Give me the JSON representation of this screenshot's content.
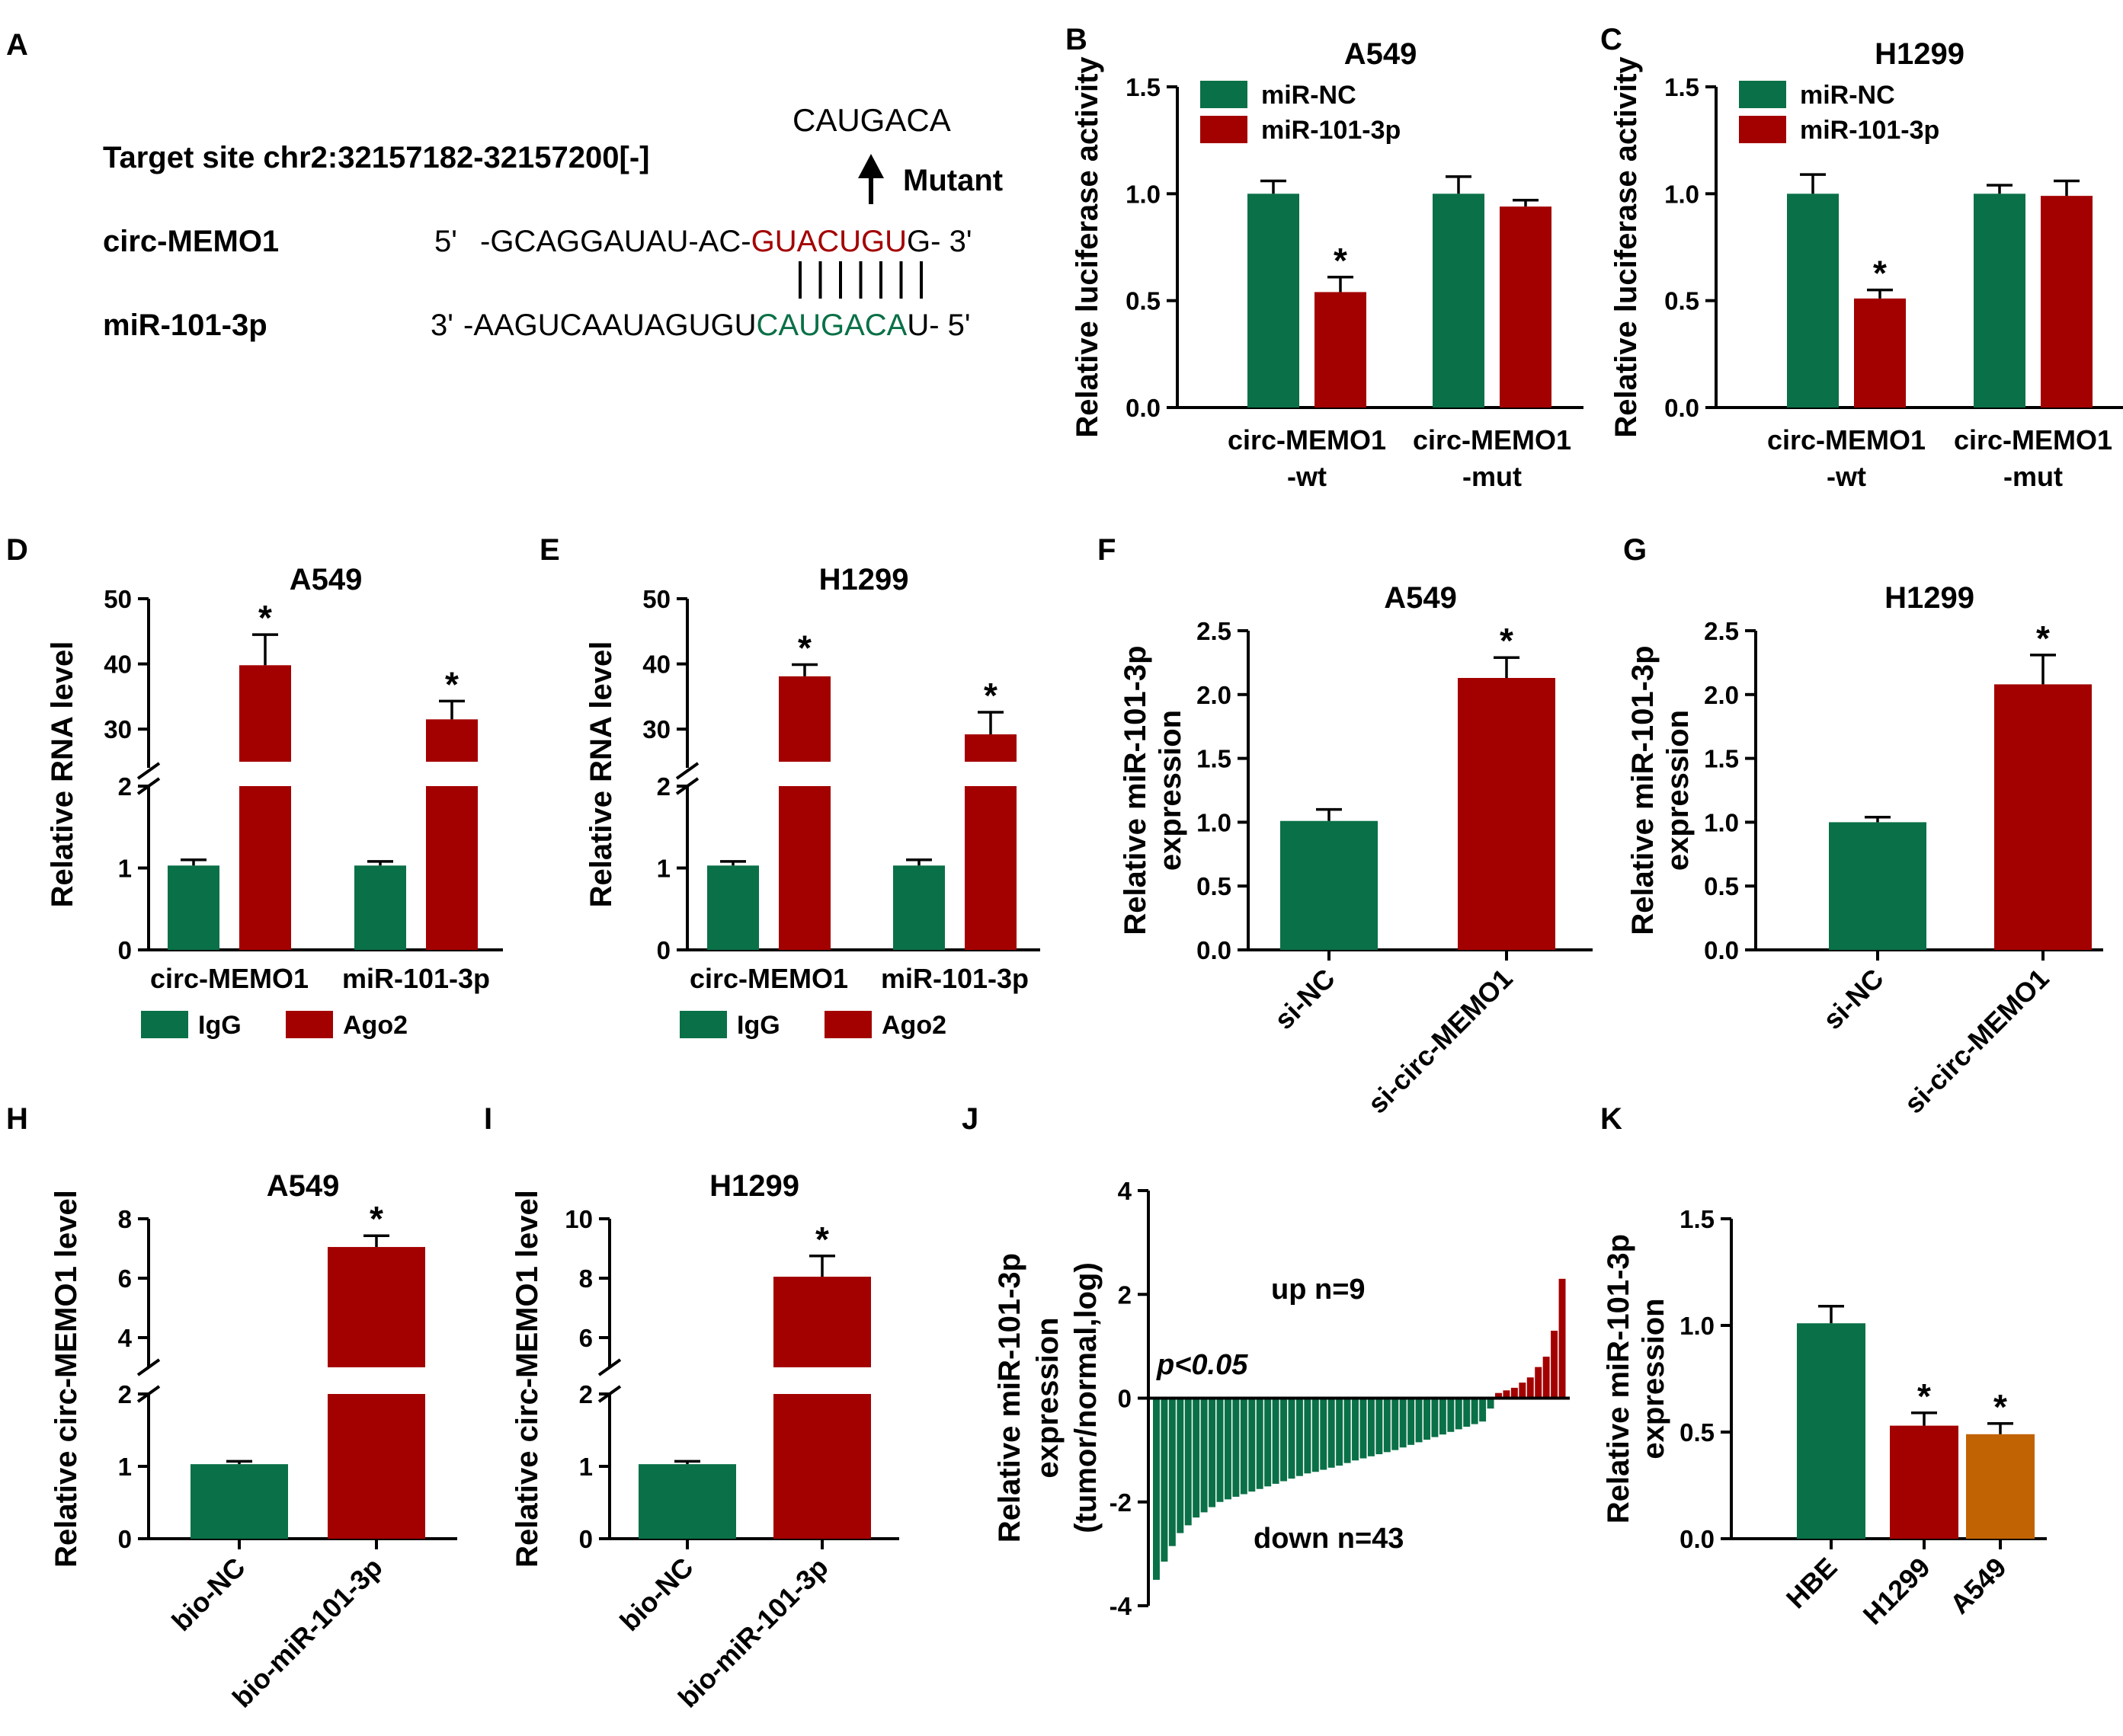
{
  "colors": {
    "green": "#0A7047",
    "red": "#A30000",
    "orange": "#C26303"
  },
  "panel_labels": [
    "A",
    "B",
    "C",
    "D",
    "E",
    "F",
    "G",
    "H",
    "I",
    "J",
    "K"
  ],
  "panelA": {
    "target_site": "Target site chr2:32157182-32157200[-]",
    "mutant_seq": "CAUGACA",
    "mutant_label": "Mutant",
    "row1_name": "circ-MEMO1",
    "row1_five": "5'",
    "row1_pre": "-GCAGGAUAU-AC-",
    "row1_site": "GUACUGU",
    "row1_post": "G- 3'",
    "row2_name": "miR-101-3p",
    "row2_three": "3'",
    "row2_pre": "-AAGUCAAUAGUGU",
    "row2_site": "CAUGACA",
    "row2_post": "U- 5'"
  },
  "chart_data": [
    {
      "id": "B",
      "type": "bar",
      "title": "A549",
      "ylabel": "Relative luciferase activity",
      "ylim": [
        0,
        1.5
      ],
      "ticks": [
        "0.0",
        "0.5",
        "1.0",
        "1.5"
      ],
      "categories": [
        "circ-MEMO1\n-wt",
        "circ-MEMO1\n-mut"
      ],
      "series": [
        {
          "name": "miR-NC",
          "values": [
            1.0,
            1.0
          ],
          "errors": [
            0.06,
            0.08
          ]
        },
        {
          "name": "miR-101-3p",
          "values": [
            0.54,
            0.94
          ],
          "errors": [
            0.07,
            0.03
          ]
        }
      ],
      "significant": [
        [
          false,
          false
        ],
        [
          true,
          false
        ]
      ],
      "legend": "top-left"
    },
    {
      "id": "C",
      "type": "bar",
      "title": "H1299",
      "ylabel": "Relative luciferase activity",
      "ylim": [
        0,
        1.5
      ],
      "ticks": [
        "0.0",
        "0.5",
        "1.0",
        "1.5"
      ],
      "categories": [
        "circ-MEMO1\n-wt",
        "circ-MEMO1\n-mut"
      ],
      "series": [
        {
          "name": "miR-NC",
          "values": [
            1.0,
            1.0
          ],
          "errors": [
            0.09,
            0.04
          ]
        },
        {
          "name": "miR-101-3p",
          "values": [
            0.51,
            0.99
          ],
          "errors": [
            0.04,
            0.07
          ]
        }
      ],
      "significant": [
        [
          false,
          false
        ],
        [
          true,
          false
        ]
      ],
      "legend": "top-left"
    },
    {
      "id": "D",
      "type": "bar",
      "title": "A549",
      "ylabel": "Relative RNA level",
      "axis_break": true,
      "lower_ticks": [
        "0",
        "1",
        "2"
      ],
      "upper_ticks": [
        "30",
        "40",
        "50"
      ],
      "categories": [
        "circ-MEMO1",
        "miR-101-3p"
      ],
      "series": [
        {
          "name": "IgG",
          "values": [
            1.03,
            1.03
          ],
          "errors": [
            0.07,
            0.05
          ]
        },
        {
          "name": "Ago2",
          "values": [
            39.8,
            31.5
          ],
          "errors": [
            4.7,
            2.8
          ]
        }
      ],
      "significant": [
        [
          false,
          false
        ],
        [
          true,
          true
        ]
      ],
      "legend": "bottom"
    },
    {
      "id": "E",
      "type": "bar",
      "title": "H1299",
      "ylabel": "Relative RNA level",
      "axis_break": true,
      "lower_ticks": [
        "0",
        "1",
        "2"
      ],
      "upper_ticks": [
        "30",
        "40",
        "50"
      ],
      "categories": [
        "circ-MEMO1",
        "miR-101-3p"
      ],
      "series": [
        {
          "name": "IgG",
          "values": [
            1.03,
            1.03
          ],
          "errors": [
            0.05,
            0.07
          ]
        },
        {
          "name": "Ago2",
          "values": [
            38.1,
            29.2
          ],
          "errors": [
            1.8,
            3.4
          ]
        }
      ],
      "significant": [
        [
          false,
          false
        ],
        [
          true,
          true
        ]
      ],
      "legend": "bottom"
    },
    {
      "id": "F",
      "type": "bar",
      "title": "A549",
      "ylabel": "Relative miR-101-3p expression",
      "ylim": [
        0,
        2.5
      ],
      "ticks": [
        "0.0",
        "0.5",
        "1.0",
        "1.5",
        "2.0",
        "2.5"
      ],
      "categories": [
        "si-NC",
        "si-circ-MEMO1"
      ],
      "values": [
        1.01,
        2.13
      ],
      "errors": [
        0.09,
        0.16
      ],
      "significant": [
        false,
        true
      ]
    },
    {
      "id": "G",
      "type": "bar",
      "title": "H1299",
      "ylabel": "Relative miR-101-3p expression",
      "ylim": [
        0,
        2.5
      ],
      "ticks": [
        "0.0",
        "0.5",
        "1.0",
        "1.5",
        "2.0",
        "2.5"
      ],
      "categories": [
        "si-NC",
        "si-circ-MEMO1"
      ],
      "values": [
        1.0,
        2.08
      ],
      "errors": [
        0.04,
        0.23
      ],
      "significant": [
        false,
        true
      ]
    },
    {
      "id": "H",
      "type": "bar",
      "title": "A549",
      "ylabel": "Relative circ-MEMO1 level",
      "axis_break": true,
      "lower_ticks": [
        "0",
        "1",
        "2"
      ],
      "upper_ticks": [
        "4",
        "6",
        "8"
      ],
      "categories": [
        "bio-NC",
        "bio-miR-101-3p"
      ],
      "values": [
        1.03,
        7.05
      ],
      "errors": [
        0.04,
        0.38
      ],
      "significant": [
        false,
        true
      ]
    },
    {
      "id": "I",
      "type": "bar",
      "title": "H1299",
      "ylabel": "Relative circ-MEMO1 level",
      "axis_break": true,
      "lower_ticks": [
        "0",
        "1",
        "2"
      ],
      "upper_ticks": [
        "6",
        "8",
        "10"
      ],
      "categories": [
        "bio-NC",
        "bio-miR-101-3p"
      ],
      "values": [
        1.03,
        8.05
      ],
      "errors": [
        0.04,
        0.7
      ],
      "significant": [
        false,
        true
      ]
    },
    {
      "id": "J",
      "type": "bar",
      "title": "",
      "ylabel": "Relative miR-101-3p expression (tumor/normal,log)",
      "ylim": [
        -4,
        4
      ],
      "ticks": [
        "-4",
        "-2",
        "0",
        "2",
        "4"
      ],
      "annotations": [
        "up n=9",
        "down n=43",
        "p<0.05"
      ],
      "values": [
        -3.5,
        -3.15,
        -2.85,
        -2.6,
        -2.45,
        -2.3,
        -2.2,
        -2.1,
        -2.0,
        -1.95,
        -1.9,
        -1.85,
        -1.8,
        -1.75,
        -1.7,
        -1.65,
        -1.6,
        -1.55,
        -1.5,
        -1.45,
        -1.42,
        -1.38,
        -1.34,
        -1.3,
        -1.25,
        -1.2,
        -1.16,
        -1.12,
        -1.08,
        -1.04,
        -1.0,
        -0.95,
        -0.9,
        -0.85,
        -0.8,
        -0.75,
        -0.7,
        -0.65,
        -0.6,
        -0.55,
        -0.5,
        -0.45,
        -0.2,
        0.1,
        0.15,
        0.2,
        0.3,
        0.4,
        0.6,
        0.8,
        1.3,
        2.3
      ]
    },
    {
      "id": "K",
      "type": "bar",
      "title": "",
      "ylabel": "Relative miR-101-3p expression",
      "ylim": [
        0,
        1.5
      ],
      "ticks": [
        "0.0",
        "0.5",
        "1.0",
        "1.5"
      ],
      "categories": [
        "HBE",
        "H1299",
        "A549"
      ],
      "values": [
        1.01,
        0.53,
        0.49
      ],
      "errors": [
        0.08,
        0.06,
        0.05
      ],
      "significant": [
        false,
        true,
        true
      ]
    }
  ]
}
